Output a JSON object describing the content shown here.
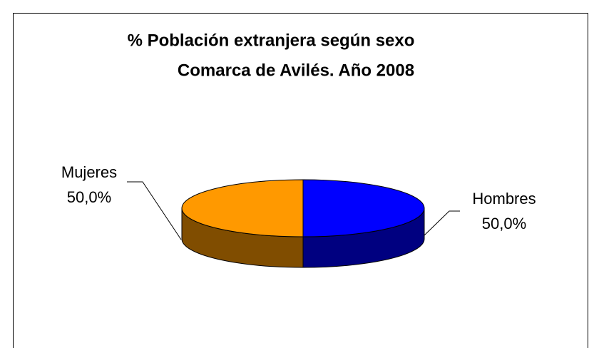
{
  "chart_data": {
    "type": "pie",
    "title": "% Población extranjera según sexo",
    "subtitle": "Comarca de Avilés. Año 2008",
    "categories": [
      "Hombres",
      "Mujeres"
    ],
    "values": [
      50,
      50
    ],
    "value_labels": [
      "50,0%",
      "50,0%"
    ],
    "colors": [
      "#0000ff",
      "#ff9900"
    ]
  }
}
